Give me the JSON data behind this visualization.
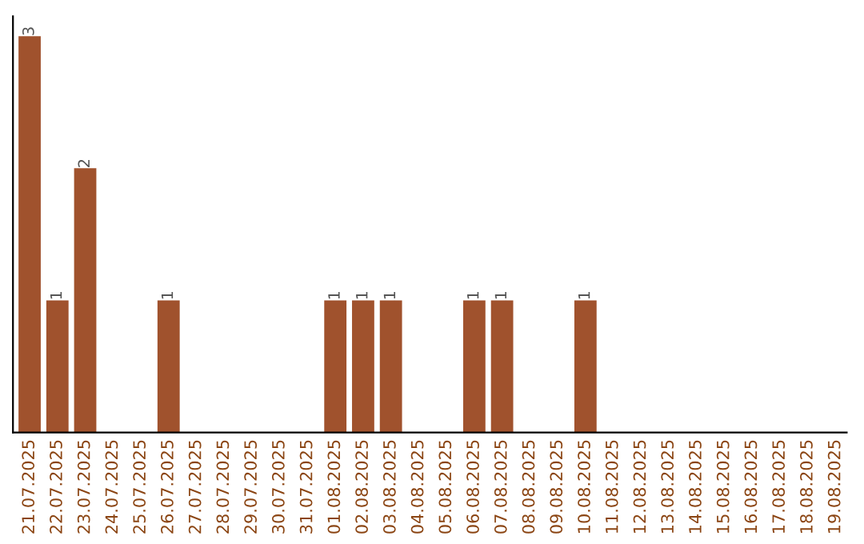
{
  "chart_data": {
    "type": "bar",
    "categories": [
      "21.07.2025",
      "22.07.2025",
      "23.07.2025",
      "24.07.2025",
      "25.07.2025",
      "26.07.2025",
      "27.07.2025",
      "28.07.2025",
      "29.07.2025",
      "30.07.2025",
      "31.07.2025",
      "01.08.2025",
      "02.08.2025",
      "03.08.2025",
      "04.08.2025",
      "05.08.2025",
      "06.08.2025",
      "07.08.2025",
      "08.08.2025",
      "09.08.2025",
      "10.08.2025",
      "11.08.2025",
      "12.08.2025",
      "13.08.2025",
      "14.08.2025",
      "15.08.2025",
      "16.08.2025",
      "17.08.2025",
      "18.08.2025",
      "19.08.2025"
    ],
    "values": [
      3,
      1,
      2,
      0,
      0,
      1,
      0,
      0,
      0,
      0,
      0,
      1,
      1,
      1,
      0,
      0,
      1,
      1,
      0,
      0,
      1,
      0,
      0,
      0,
      0,
      0,
      0,
      0,
      0,
      0
    ],
    "value_labels": [
      "3",
      "1",
      "2",
      null,
      null,
      "1",
      null,
      null,
      null,
      null,
      null,
      "1",
      "1",
      "1",
      null,
      null,
      "1",
      "1",
      null,
      null,
      "1",
      null,
      null,
      null,
      null,
      null,
      null,
      null,
      null,
      null
    ],
    "color": "#a0522d",
    "tick_labels": "x",
    "grid": false,
    "legend": false
  }
}
